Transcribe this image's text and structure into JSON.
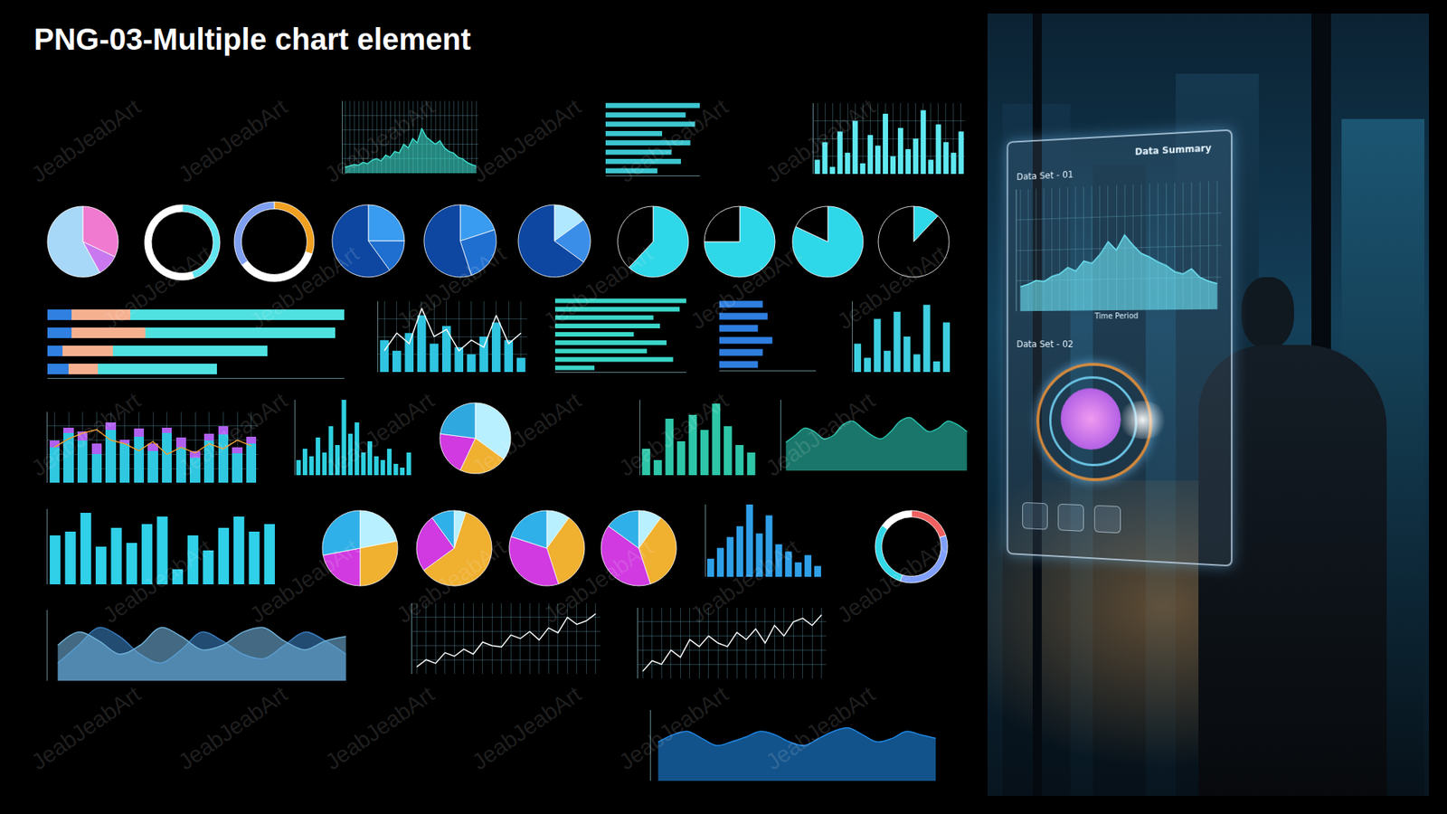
{
  "title": "PNG-03-Multiple chart element",
  "watermark": "JeabJeabArt",
  "panel": {
    "title": "Data Summary",
    "set1": "Data Set - 01",
    "set2": "Data Set - 02",
    "chart": {
      "type": "area",
      "x_label": "Time Period",
      "grid": true,
      "tick_labels": false,
      "ylim": [
        0,
        100
      ],
      "yticks": [
        0,
        25,
        50,
        75,
        100
      ],
      "categories": [
        null,
        null,
        null,
        null,
        null,
        null,
        null,
        null,
        null,
        null,
        null,
        null,
        null,
        null,
        null,
        null,
        null,
        null,
        null,
        null,
        null,
        null,
        null,
        null,
        null
      ],
      "series": [
        {
          "color": "#6fe8f8",
          "values": [
            20,
            22,
            25,
            24,
            28,
            30,
            35,
            32,
            40,
            38,
            45,
            55,
            48,
            60,
            52,
            45,
            42,
            38,
            35,
            30,
            28,
            32,
            25,
            22,
            20
          ]
        }
      ]
    }
  },
  "chart_data": [
    {
      "type": "area",
      "grid": true,
      "tick_labels": false,
      "ylim": [
        0,
        100
      ],
      "yticks": [
        0,
        20,
        40,
        60,
        80,
        100
      ],
      "categories": [
        null,
        null,
        null,
        null,
        null,
        null,
        null,
        null,
        null,
        null,
        null,
        null,
        null,
        null,
        null,
        null,
        null,
        null,
        null,
        null,
        null,
        null,
        null,
        null,
        null,
        null,
        null,
        null,
        null,
        null
      ],
      "series": [
        {
          "color": "#3ee0d0",
          "values": [
            8,
            10,
            12,
            11,
            15,
            13,
            18,
            20,
            17,
            25,
            22,
            30,
            28,
            40,
            35,
            48,
            42,
            62,
            50,
            45,
            40,
            45,
            35,
            30,
            28,
            22,
            20,
            15,
            12,
            10
          ]
        }
      ]
    },
    {
      "type": "bar",
      "orientation": "horizontal",
      "tick_labels": false,
      "xlim": [
        0,
        100
      ],
      "categories": [
        null,
        null,
        null,
        null,
        null,
        null,
        null,
        null
      ],
      "series": [
        {
          "color": "#3cc6d0",
          "values": [
            100,
            85,
            95,
            60,
            90,
            70,
            80,
            55
          ]
        }
      ]
    },
    {
      "type": "bar",
      "grid": true,
      "tick_labels": false,
      "ylim": [
        0,
        100
      ],
      "yticks": [
        0,
        25,
        50,
        75,
        100
      ],
      "categories": [
        null,
        null,
        null,
        null,
        null,
        null,
        null,
        null,
        null,
        null,
        null,
        null,
        null,
        null,
        null,
        null,
        null,
        null,
        null,
        null
      ],
      "series": [
        {
          "color": "#5fe8f0",
          "values": [
            20,
            45,
            10,
            60,
            30,
            75,
            15,
            55,
            40,
            85,
            25,
            65,
            35,
            50,
            90,
            20,
            70,
            45,
            30,
            60
          ]
        }
      ]
    },
    {
      "type": "pie",
      "values": [
        32,
        10,
        58
      ],
      "colors": [
        "#f07ad0",
        "#c978f0",
        "#a8d8f8"
      ]
    },
    {
      "type": "donut",
      "values": [
        45,
        55
      ],
      "colors": [
        "#5fe6f0",
        "#ffffff"
      ]
    },
    {
      "type": "donut",
      "values": [
        30,
        35,
        35
      ],
      "colors": [
        "#f0a020",
        "#ffffff",
        "#7f9ff0"
      ]
    },
    {
      "type": "pie",
      "values": [
        25,
        15,
        60
      ],
      "colors": [
        "#3a9cf0",
        "#1f6fd0",
        "#0d47a1"
      ]
    },
    {
      "type": "pie",
      "values": [
        20,
        25,
        55
      ],
      "colors": [
        "#3a9cf0",
        "#1f6fd0",
        "#0d47a1"
      ]
    },
    {
      "type": "pie",
      "values": [
        15,
        20,
        65
      ],
      "colors": [
        "#b0e8ff",
        "#3a8ee8",
        "#0d47a1"
      ]
    },
    {
      "type": "pie",
      "values": [
        62,
        38
      ],
      "colors": [
        "#2fd8e8",
        "#000000"
      ]
    },
    {
      "type": "pie",
      "values": [
        75,
        25
      ],
      "colors": [
        "#2fd8e8",
        "#000000"
      ]
    },
    {
      "type": "pie",
      "values": [
        82,
        18
      ],
      "colors": [
        "#2fd8e8",
        "#000000"
      ]
    },
    {
      "type": "pie",
      "values": [
        12,
        88
      ],
      "colors": [
        "#2fd8e8",
        "#000000"
      ]
    },
    {
      "type": "bar",
      "orientation": "horizontal",
      "stacked": true,
      "tick_labels": false,
      "xlim": [
        0,
        100
      ],
      "categories": [
        null,
        null,
        null,
        null
      ],
      "series": [
        {
          "color": "#2f80e0",
          "values": [
            8,
            8,
            5,
            7
          ]
        },
        {
          "color": "#f5b090",
          "values": [
            20,
            25,
            17,
            10
          ]
        },
        {
          "color": "#4fe0e0",
          "values": [
            72,
            64,
            52,
            40
          ]
        }
      ]
    },
    {
      "type": "bar",
      "grid": true,
      "tick_labels": false,
      "ylim": [
        0,
        100
      ],
      "yticks": [
        0,
        25,
        50,
        75,
        100
      ],
      "categories": [
        null,
        null,
        null,
        null,
        null,
        null,
        null,
        null,
        null,
        null,
        null,
        null
      ],
      "series": [
        {
          "color": "#2fc4e0",
          "values": [
            45,
            30,
            55,
            80,
            40,
            65,
            35,
            25,
            50,
            70,
            45,
            20
          ]
        },
        {
          "type": "line",
          "color": "#ffffff",
          "values": [
            30,
            55,
            40,
            90,
            50,
            60,
            30,
            45,
            35,
            80,
            40,
            55
          ]
        }
      ]
    },
    {
      "type": "bar",
      "orientation": "horizontal",
      "tick_labels": false,
      "xlim": [
        0,
        100
      ],
      "categories": [
        null,
        null,
        null,
        null,
        null,
        null,
        null,
        null,
        null
      ],
      "series": [
        {
          "color": "#3ad6c8",
          "values": [
            100,
            95,
            75,
            80,
            60,
            85,
            70,
            90,
            30
          ]
        }
      ]
    },
    {
      "type": "bar",
      "orientation": "horizontal",
      "tick_labels": false,
      "xlim": [
        0,
        100
      ],
      "categories": [
        null,
        null,
        null,
        null,
        null,
        null
      ],
      "series": [
        {
          "color": "#2f7fe0",
          "values": [
            45,
            50,
            40,
            55,
            45,
            40
          ]
        }
      ]
    },
    {
      "type": "bar",
      "tick_labels": false,
      "ylim": [
        0,
        100
      ],
      "categories": [
        null,
        null,
        null,
        null,
        null,
        null,
        null,
        null,
        null,
        null
      ],
      "series": [
        {
          "color": "#3ecfe0",
          "values": [
            40,
            20,
            75,
            30,
            85,
            50,
            25,
            95,
            15,
            70
          ]
        }
      ]
    },
    {
      "type": "bar",
      "stacked": true,
      "grid": true,
      "tick_labels": false,
      "ylim": [
        0,
        100
      ],
      "yticks": [
        0,
        20,
        40,
        60,
        80,
        100
      ],
      "categories": [
        null,
        null,
        null,
        null,
        null,
        null,
        null,
        null,
        null,
        null,
        null,
        null,
        null,
        null,
        null
      ],
      "series": [
        {
          "color": "#2fc8e0",
          "values": [
            50,
            70,
            60,
            40,
            75,
            55,
            65,
            45,
            70,
            50,
            35,
            60,
            68,
            42,
            55
          ]
        },
        {
          "color": "#b060f0",
          "values": [
            10,
            8,
            12,
            15,
            10,
            6,
            12,
            10,
            8,
            14,
            10,
            9,
            12,
            8,
            10
          ]
        },
        {
          "type": "line",
          "color": "#f0a030",
          "values": [
            50,
            62,
            70,
            75,
            60,
            55,
            45,
            58,
            40,
            50,
            42,
            55,
            48,
            60,
            52
          ]
        }
      ]
    },
    {
      "type": "bar",
      "tick_labels": false,
      "ylim": [
        0,
        100
      ],
      "categories": [
        null,
        null,
        null,
        null,
        null,
        null,
        null,
        null,
        null,
        null,
        null,
        null,
        null,
        null,
        null,
        null,
        null,
        null
      ],
      "series": [
        {
          "color": "#2fd0e0",
          "values": [
            20,
            35,
            25,
            50,
            30,
            65,
            40,
            100,
            55,
            70,
            30,
            45,
            25,
            20,
            35,
            15,
            10,
            30
          ]
        }
      ]
    },
    {
      "type": "pie",
      "values": [
        35,
        22,
        20,
        23
      ],
      "colors": [
        "#b8f0ff",
        "#f0b030",
        "#d03ae0",
        "#2fa8e0"
      ]
    },
    {
      "type": "bar",
      "tick_labels": false,
      "ylim": [
        0,
        100
      ],
      "categories": [
        null,
        null,
        null,
        null,
        null,
        null,
        null,
        null,
        null,
        null
      ],
      "series": [
        {
          "color": "#2ec6a8",
          "values": [
            35,
            20,
            75,
            45,
            80,
            60,
            95,
            65,
            40,
            30
          ]
        }
      ]
    },
    {
      "type": "area",
      "line_style": "smooth",
      "tick_labels": false,
      "ylim": [
        0,
        100
      ],
      "categories": [
        null,
        null,
        null,
        null,
        null,
        null,
        null,
        null,
        null,
        null,
        null,
        null,
        null,
        null,
        null,
        null,
        null,
        null,
        null,
        null
      ],
      "series": [
        {
          "color": "#2cc4b0",
          "values": [
            40,
            50,
            60,
            55,
            45,
            50,
            65,
            70,
            60,
            50,
            45,
            55,
            70,
            75,
            65,
            55,
            60,
            70,
            65,
            55
          ]
        }
      ]
    },
    {
      "type": "bar",
      "tick_labels": false,
      "ylim": [
        0,
        100
      ],
      "categories": [
        null,
        null,
        null,
        null,
        null,
        null,
        null,
        null,
        null,
        null,
        null,
        null,
        null,
        null,
        null
      ],
      "series": [
        {
          "color": "#2fd0e8",
          "values": [
            65,
            70,
            95,
            50,
            75,
            55,
            80,
            90,
            20,
            65,
            45,
            75,
            90,
            70,
            80
          ]
        }
      ]
    },
    {
      "type": "pie",
      "values": [
        22,
        28,
        22,
        28
      ],
      "colors": [
        "#b8f0ff",
        "#f0b030",
        "#d03ae0",
        "#2fb0e8"
      ]
    },
    {
      "type": "pie",
      "values": [
        5,
        60,
        25,
        10
      ],
      "colors": [
        "#b8f0ff",
        "#f0b030",
        "#d03ae0",
        "#2fb0e8"
      ]
    },
    {
      "type": "pie",
      "values": [
        10,
        35,
        35,
        20
      ],
      "colors": [
        "#b8f0ff",
        "#f0b030",
        "#d03ae0",
        "#2fb0e8"
      ]
    },
    {
      "type": "pie",
      "values": [
        10,
        35,
        40,
        15
      ],
      "colors": [
        "#b8f0ff",
        "#f0b030",
        "#d03ae0",
        "#2fb0e8"
      ]
    },
    {
      "type": "bar",
      "tick_labels": false,
      "ylim": [
        0,
        100
      ],
      "categories": [
        null,
        null,
        null,
        null,
        null,
        null,
        null,
        null,
        null,
        null,
        null,
        null
      ],
      "series": [
        {
          "color": "#2fa0e8",
          "values": [
            25,
            40,
            55,
            70,
            100,
            60,
            85,
            45,
            35,
            20,
            30,
            15
          ]
        }
      ]
    },
    {
      "type": "donut",
      "values": [
        20,
        35,
        30,
        15
      ],
      "colors": [
        "#f06060",
        "#7f9fff",
        "#30d8e8",
        "#ffffff"
      ]
    },
    {
      "type": "area",
      "line_style": "smooth",
      "tick_labels": false,
      "ylim": [
        0,
        80
      ],
      "categories": [
        null,
        null,
        null,
        null,
        null,
        null,
        null,
        null,
        null,
        null,
        null,
        null,
        null,
        null,
        null
      ],
      "series": [
        {
          "color": "#3a7ec0",
          "values": [
            20,
            40,
            60,
            50,
            30,
            20,
            35,
            55,
            45,
            30,
            25,
            40,
            55,
            45,
            30
          ]
        },
        {
          "color": "#6fb0d8",
          "values": [
            40,
            55,
            45,
            30,
            40,
            60,
            50,
            35,
            40,
            55,
            60,
            45,
            35,
            45,
            50
          ]
        }
      ]
    },
    {
      "type": "line",
      "grid": true,
      "tick_labels": false,
      "ylim": [
        0,
        100
      ],
      "yticks": [
        0,
        20,
        40,
        60,
        80,
        100
      ],
      "categories": [
        null,
        null,
        null,
        null,
        null,
        null,
        null,
        null,
        null,
        null,
        null,
        null,
        null,
        null,
        null,
        null,
        null,
        null,
        null,
        null
      ],
      "series": [
        {
          "color": "#ffffff",
          "values": [
            10,
            20,
            15,
            30,
            25,
            35,
            28,
            45,
            40,
            38,
            55,
            50,
            60,
            48,
            65,
            58,
            80,
            70,
            75,
            85
          ]
        }
      ]
    },
    {
      "type": "line",
      "grid": true,
      "tick_labels": false,
      "ylim": [
        0,
        100
      ],
      "yticks": [
        0,
        20,
        40,
        60,
        80,
        100
      ],
      "categories": [
        null,
        null,
        null,
        null,
        null,
        null,
        null,
        null,
        null,
        null,
        null,
        null,
        null,
        null,
        null,
        null,
        null,
        null,
        null,
        null
      ],
      "series": [
        {
          "color": "#ffffff",
          "values": [
            10,
            25,
            20,
            40,
            30,
            55,
            45,
            60,
            50,
            45,
            65,
            55,
            70,
            50,
            75,
            60,
            80,
            85,
            75,
            90
          ]
        }
      ]
    },
    {
      "type": "area",
      "line_style": "smooth",
      "tick_labels": false,
      "ylim": [
        0,
        100
      ],
      "categories": [
        null,
        null,
        null,
        null,
        null,
        null,
        null,
        null,
        null,
        null,
        null,
        null,
        null,
        null,
        null,
        null,
        null,
        null,
        null,
        null
      ],
      "series": [
        {
          "color": "#1f8ae8",
          "values": [
            55,
            65,
            70,
            60,
            50,
            55,
            62,
            70,
            65,
            55,
            50,
            60,
            70,
            75,
            65,
            55,
            60,
            70,
            65,
            60
          ]
        }
      ]
    }
  ]
}
